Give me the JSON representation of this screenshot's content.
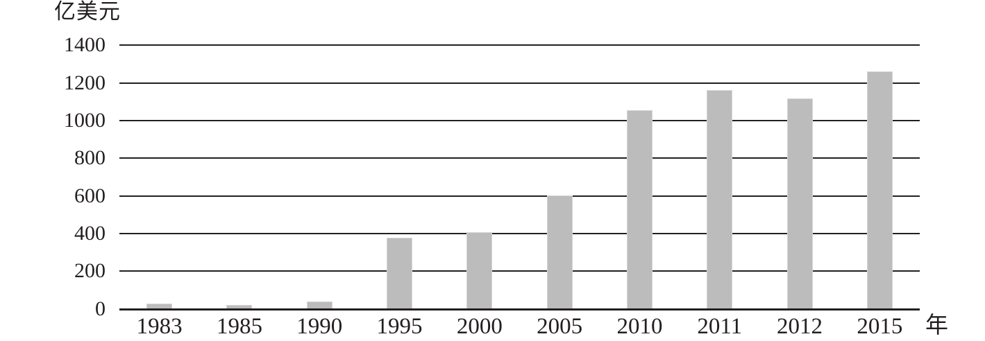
{
  "page": {
    "background_color": "#ffffff",
    "text_color": "#231f20"
  },
  "chart_data": {
    "type": "bar",
    "title": "",
    "y_axis_unit": "亿美元",
    "x_axis_unit": "年",
    "categories": [
      "1983",
      "1985",
      "1990",
      "1995",
      "2000",
      "2005",
      "2010",
      "2011",
      "2012",
      "2015"
    ],
    "values": [
      25,
      20,
      35,
      375,
      405,
      600,
      1055,
      1160,
      1115,
      1260
    ],
    "ylim": [
      0,
      1400
    ],
    "yticks": [
      0,
      200,
      400,
      600,
      800,
      1000,
      1200,
      1400
    ],
    "grid": "horizontal",
    "legend_position": "none",
    "bar_color": "#bcbcbc",
    "bar_edge_color": "#d6d6d6",
    "line_color": "#231f20"
  }
}
